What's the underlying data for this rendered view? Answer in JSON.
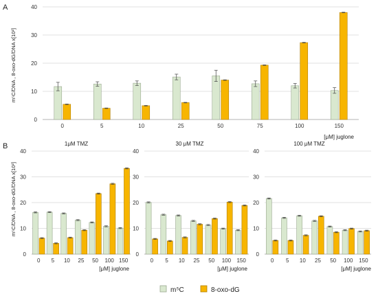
{
  "colors": {
    "m5c": "#d9e8cf",
    "m5c_stroke": "#9aa890",
    "oxo": "#f7b500",
    "oxo_stroke": "#b07e00",
    "grid": "#d6d6d6",
    "axis": "#9a9a9a"
  },
  "legend": {
    "m5c": "m⁵C",
    "oxo": "8-oxo-dG"
  },
  "chart_data": [
    {
      "panel": "A",
      "type": "bar",
      "title": "",
      "xlabel": "[μM] juglone",
      "ylabel": "m⁵C/DNA , 8-oxo-dG/DNA  x[10²]",
      "ylim": [
        0,
        40
      ],
      "yticks": [
        "0",
        "10",
        "20",
        "30",
        "40"
      ],
      "categories": [
        "0",
        "5",
        "10",
        "25",
        "50",
        "75",
        "100",
        "150"
      ],
      "series": [
        {
          "name": "m⁵C",
          "values": [
            11.7,
            12.6,
            12.9,
            15.1,
            15.5,
            12.7,
            12.0,
            10.3
          ],
          "errors": [
            1.5,
            0.8,
            0.8,
            1.0,
            2.0,
            1.0,
            0.8,
            1.0
          ]
        },
        {
          "name": "8-oxo-dG",
          "values": [
            5.4,
            4.0,
            4.9,
            6.0,
            14.0,
            19.3,
            27.3,
            38.0
          ],
          "errors": [
            0.1,
            0.1,
            0.1,
            0.1,
            0.1,
            0.1,
            0.1,
            0.1
          ]
        }
      ]
    },
    {
      "panel": "B",
      "type": "bar",
      "title": "1μM TMZ",
      "xlabel": "[μM] juglone",
      "ylabel": "m⁵C/DNA , 8-oxo-dG/DNA  x[10²]",
      "ylim": [
        0,
        40
      ],
      "yticks": [
        "0",
        "10",
        "20",
        "30",
        "40"
      ],
      "categories": [
        "0",
        "5",
        "10",
        "25",
        "50",
        "100",
        "150"
      ],
      "series": [
        {
          "name": "m⁵C",
          "values": [
            16.2,
            16.3,
            15.8,
            13.2,
            12.3,
            10.8,
            10.1
          ],
          "errors": [
            0.2,
            0.2,
            0.2,
            0.2,
            0.2,
            0.2,
            0.2
          ]
        },
        {
          "name": "8-oxo-dG",
          "values": [
            6.2,
            4.2,
            6.4,
            9.3,
            23.5,
            27.3,
            33.3
          ],
          "errors": [
            0.2,
            0.2,
            0.2,
            0.2,
            0.2,
            0.2,
            0.2
          ]
        }
      ]
    },
    {
      "panel": "",
      "type": "bar",
      "title": "30 μM TMZ",
      "xlabel": "[μM] juglone",
      "ylabel": "",
      "ylim": [
        0,
        40
      ],
      "yticks": [
        "0",
        "10",
        "20",
        "30",
        "40"
      ],
      "categories": [
        "0",
        "5",
        "10",
        "25",
        "50",
        "100",
        "150"
      ],
      "series": [
        {
          "name": "m⁵C",
          "values": [
            20.1,
            15.3,
            15.0,
            12.9,
            11.3,
            9.9,
            9.3
          ],
          "errors": [
            0.2,
            0.2,
            0.2,
            0.2,
            0.2,
            0.2,
            0.2
          ]
        },
        {
          "name": "8-oxo-dG",
          "values": [
            5.9,
            5.1,
            6.5,
            11.6,
            13.8,
            20.2,
            18.9
          ],
          "errors": [
            0.2,
            0.2,
            0.2,
            0.2,
            0.2,
            0.2,
            0.2
          ]
        }
      ]
    },
    {
      "panel": "",
      "type": "bar",
      "title": "100 μM TMZ",
      "xlabel": "[μM] juglone",
      "ylabel": "",
      "ylim": [
        0,
        40
      ],
      "yticks": [
        "0",
        "10",
        "20",
        "30",
        "40"
      ],
      "categories": [
        "0",
        "5",
        "10",
        "25",
        "50",
        "100",
        "150"
      ],
      "series": [
        {
          "name": "m⁵C",
          "values": [
            21.6,
            14.1,
            14.9,
            12.9,
            10.7,
            9.3,
            8.8
          ],
          "errors": [
            0.2,
            0.2,
            0.2,
            0.2,
            0.2,
            0.2,
            0.2
          ]
        },
        {
          "name": "8-oxo-dG",
          "values": [
            5.3,
            5.3,
            7.3,
            14.7,
            8.5,
            9.9,
            9.1
          ],
          "errors": [
            0.2,
            0.2,
            0.2,
            0.2,
            0.2,
            0.2,
            0.2
          ]
        }
      ]
    }
  ]
}
